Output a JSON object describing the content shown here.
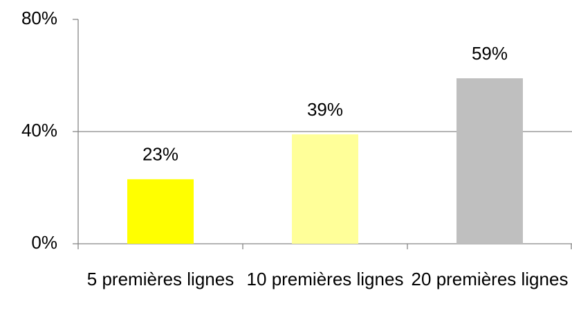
{
  "chart_data": {
    "type": "bar",
    "categories": [
      "5 premières lignes",
      "10 premières lignes",
      "20 premières lignes"
    ],
    "values": [
      23,
      39,
      59
    ],
    "value_labels": [
      "23%",
      "39%",
      "59%"
    ],
    "colors": [
      "#ffff00",
      "#ffff99",
      "#bfbfbf"
    ],
    "ylim": [
      0,
      80
    ],
    "yticks": [
      {
        "value": 0,
        "label": "0%"
      },
      {
        "value": 40,
        "label": "40%"
      },
      {
        "value": 80,
        "label": "80%"
      }
    ],
    "grid": true
  }
}
